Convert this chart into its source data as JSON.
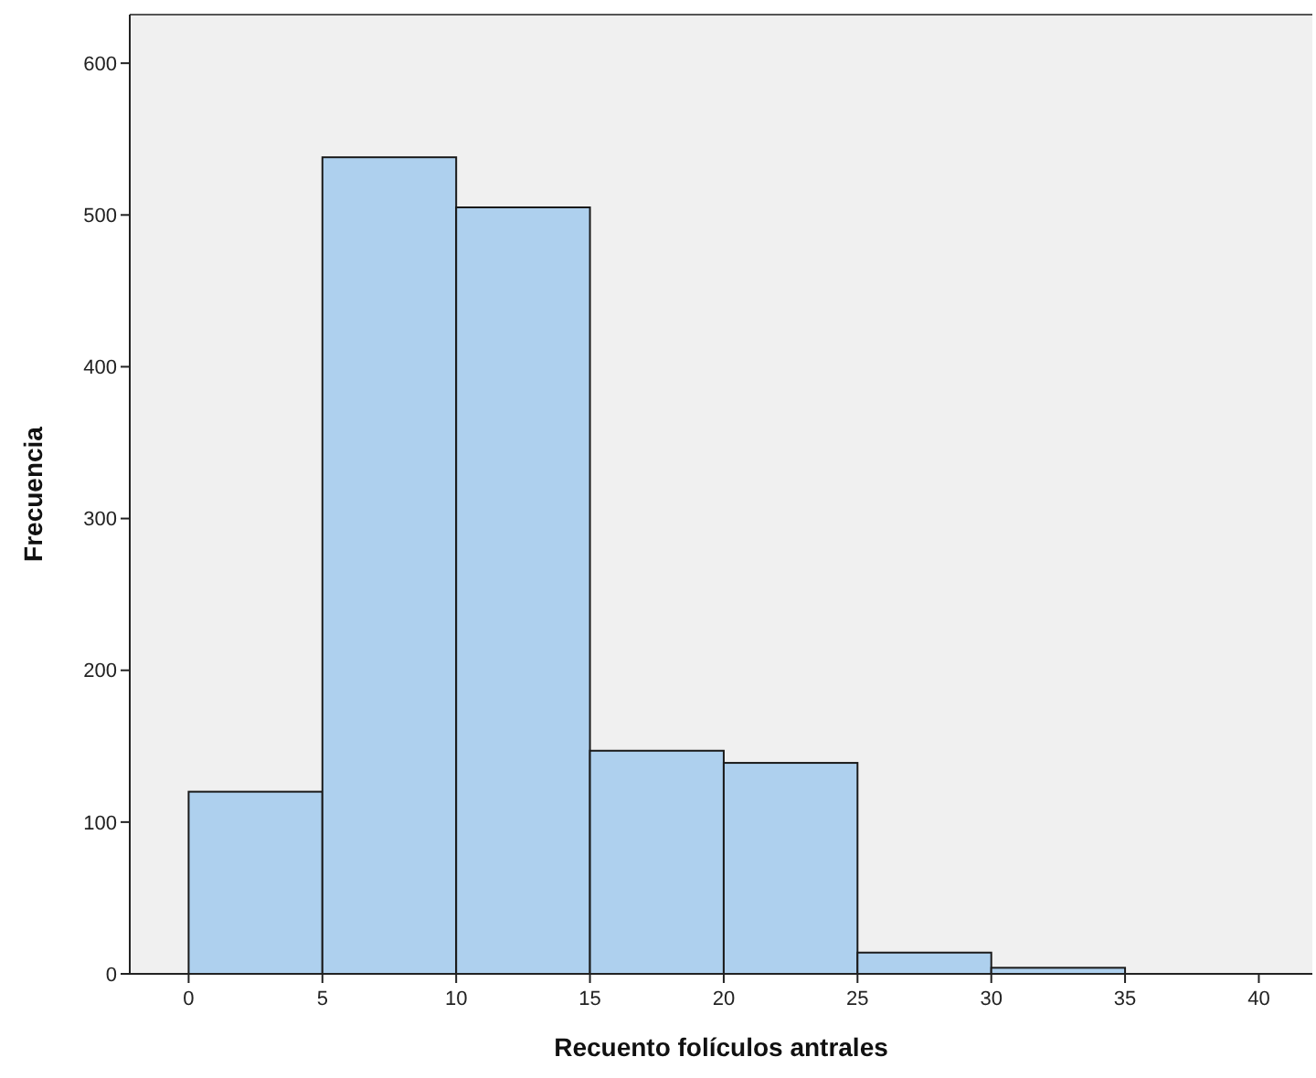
{
  "chart_data": {
    "type": "histogram",
    "xlabel": "Recuento folículos antrales",
    "ylabel": "Frecuencia",
    "bins": [
      0,
      5,
      10,
      15,
      20,
      25,
      30,
      35
    ],
    "values": [
      120,
      538,
      505,
      147,
      139,
      14,
      4
    ],
    "color": "#aed0ee",
    "xlim": [
      -2.2,
      42
    ],
    "xticks": [
      0,
      5,
      10,
      15,
      20,
      25,
      30,
      35,
      40
    ],
    "ylim": [
      0,
      632
    ],
    "yticks": [
      0,
      100,
      200,
      300,
      400,
      500,
      600
    ],
    "grid": false
  }
}
